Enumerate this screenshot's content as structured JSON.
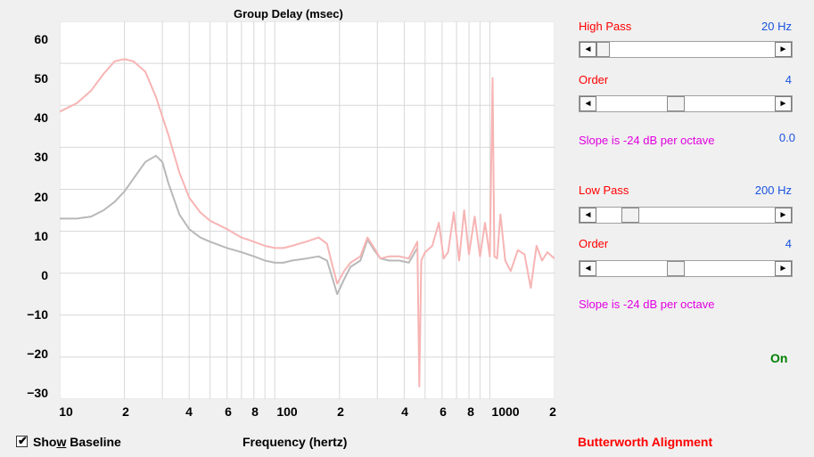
{
  "chart": {
    "title": "Group Delay (msec)",
    "xlabel": "Frequency (hertz)",
    "y_tick_labels": [
      "60",
      "50",
      "40",
      "30",
      "20",
      "10",
      "0",
      "−10",
      "−20",
      "−30"
    ],
    "x_tick_labels": [
      "10",
      "2",
      "4",
      "6",
      "8",
      "100",
      "2",
      "4",
      "6",
      "8",
      "1000",
      "2"
    ]
  },
  "chart_data": {
    "type": "line",
    "title": "Group Delay (msec)",
    "xlabel": "Frequency (hertz)",
    "ylabel": "",
    "xscale": "log",
    "xlim": [
      10,
      2000
    ],
    "ylim": [
      -30,
      60
    ],
    "grid": true,
    "series": [
      {
        "color": "#f7b4b4",
        "x": [
          10,
          12,
          14,
          16,
          18,
          20,
          22,
          25,
          28,
          32,
          36,
          40,
          45,
          50,
          60,
          70,
          80,
          90,
          100,
          110,
          120,
          140,
          160,
          175,
          185,
          195,
          210,
          225,
          250,
          270,
          290,
          310,
          340,
          380,
          420,
          460,
          470,
          480,
          500,
          540,
          580,
          610,
          640,
          680,
          720,
          760,
          800,
          850,
          900,
          950,
          1000,
          1030,
          1050,
          1080,
          1120,
          1180,
          1250,
          1350,
          1450,
          1550,
          1650,
          1750,
          1850,
          2000
        ],
        "y": [
          38.5,
          40.5,
          43.5,
          47.5,
          50.5,
          51.0,
          50.5,
          48.0,
          42.0,
          33.0,
          24.0,
          18.0,
          14.5,
          12.5,
          10.5,
          8.5,
          7.5,
          6.5,
          6.0,
          6.0,
          6.5,
          7.5,
          8.5,
          7.0,
          2.0,
          -2.5,
          0.5,
          2.5,
          4.0,
          8.5,
          6.0,
          3.5,
          4.0,
          4.0,
          3.5,
          7.5,
          -27.0,
          3.0,
          5.0,
          6.5,
          12.0,
          3.5,
          5.0,
          14.5,
          3.0,
          15.0,
          4.5,
          13.5,
          4.0,
          12.0,
          4.0,
          46.5,
          4.0,
          3.5,
          14.0,
          3.0,
          0.5,
          5.5,
          4.5,
          -3.5,
          6.5,
          3.0,
          5.0,
          3.5
        ]
      },
      {
        "color": "#b8b8b8",
        "x": [
          10,
          12,
          14,
          16,
          18,
          20,
          22,
          25,
          28,
          30,
          32,
          36,
          40,
          45,
          50,
          60,
          70,
          80,
          90,
          100,
          110,
          120,
          140,
          160,
          175,
          185,
          195,
          210,
          225,
          250,
          270,
          290,
          310,
          340,
          380,
          420,
          460
        ],
        "y": [
          13.0,
          13.0,
          13.5,
          15.0,
          17.0,
          19.5,
          22.5,
          26.5,
          28.0,
          26.5,
          21.5,
          14.0,
          10.5,
          8.5,
          7.5,
          6.0,
          5.0,
          4.0,
          3.0,
          2.5,
          2.5,
          3.0,
          3.5,
          4.0,
          3.0,
          -1.0,
          -5.0,
          -1.5,
          1.5,
          3.0,
          8.0,
          5.5,
          3.5,
          3.0,
          3.0,
          2.5,
          6.0
        ]
      }
    ]
  },
  "controls": {
    "show_baseline_label_pre": "Sho",
    "show_baseline_label_u": "w",
    "show_baseline_label_post": " Baseline",
    "show_baseline_checked": true,
    "alignment_label": "Butterworth Alignment",
    "high_pass": {
      "label": "High Pass",
      "value": "20 Hz",
      "order_label": "Order",
      "order_value": "4",
      "slope_text": "Slope is -24 dB per octave",
      "slope_extra": "0.0"
    },
    "low_pass": {
      "label": "Low Pass",
      "value": "200 Hz",
      "order_label": "Order",
      "order_value": "4",
      "slope_text": "Slope is -24 dB per octave"
    },
    "status": "On",
    "left_arrow_glyph": "◄",
    "right_arrow_glyph": "►",
    "checkmark_glyph": "✔"
  }
}
